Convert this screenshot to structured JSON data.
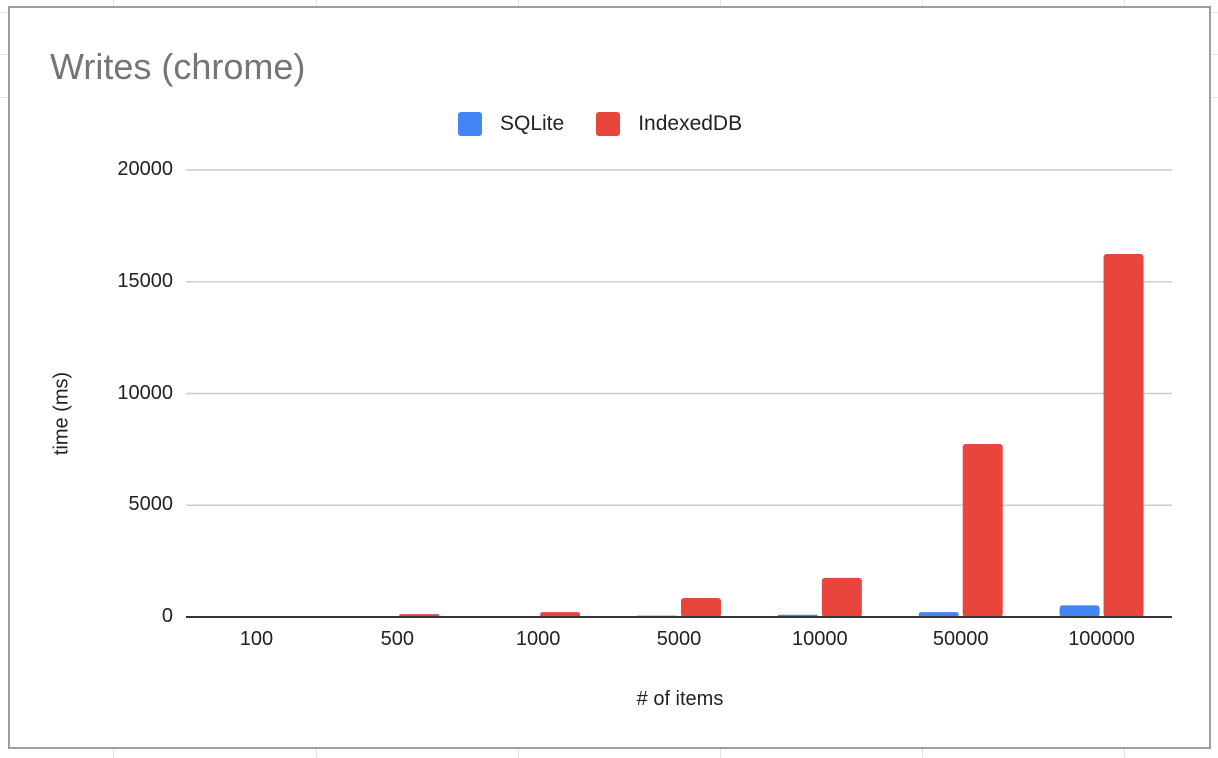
{
  "chart_data": {
    "type": "bar",
    "title": "Writes (chrome)",
    "xlabel": "# of items",
    "ylabel": "time (ms)",
    "ylim": [
      0,
      20000
    ],
    "yticks": [
      0,
      5000,
      10000,
      15000,
      20000
    ],
    "grid": true,
    "legend_position": "top",
    "categories": [
      "100",
      "500",
      "1000",
      "5000",
      "10000",
      "50000",
      "100000"
    ],
    "series": [
      {
        "name": "SQLite",
        "color": "#4285f4",
        "values": [
          5,
          15,
          25,
          60,
          100,
          220,
          520
        ]
      },
      {
        "name": "IndexedDB",
        "color": "#e8453c",
        "values": [
          20,
          130,
          220,
          850,
          1750,
          7740,
          16240
        ]
      }
    ]
  },
  "legend": {
    "items": [
      {
        "label": "SQLite",
        "color": "#4285f4"
      },
      {
        "label": "IndexedDB",
        "color": "#e8453c"
      }
    ]
  }
}
